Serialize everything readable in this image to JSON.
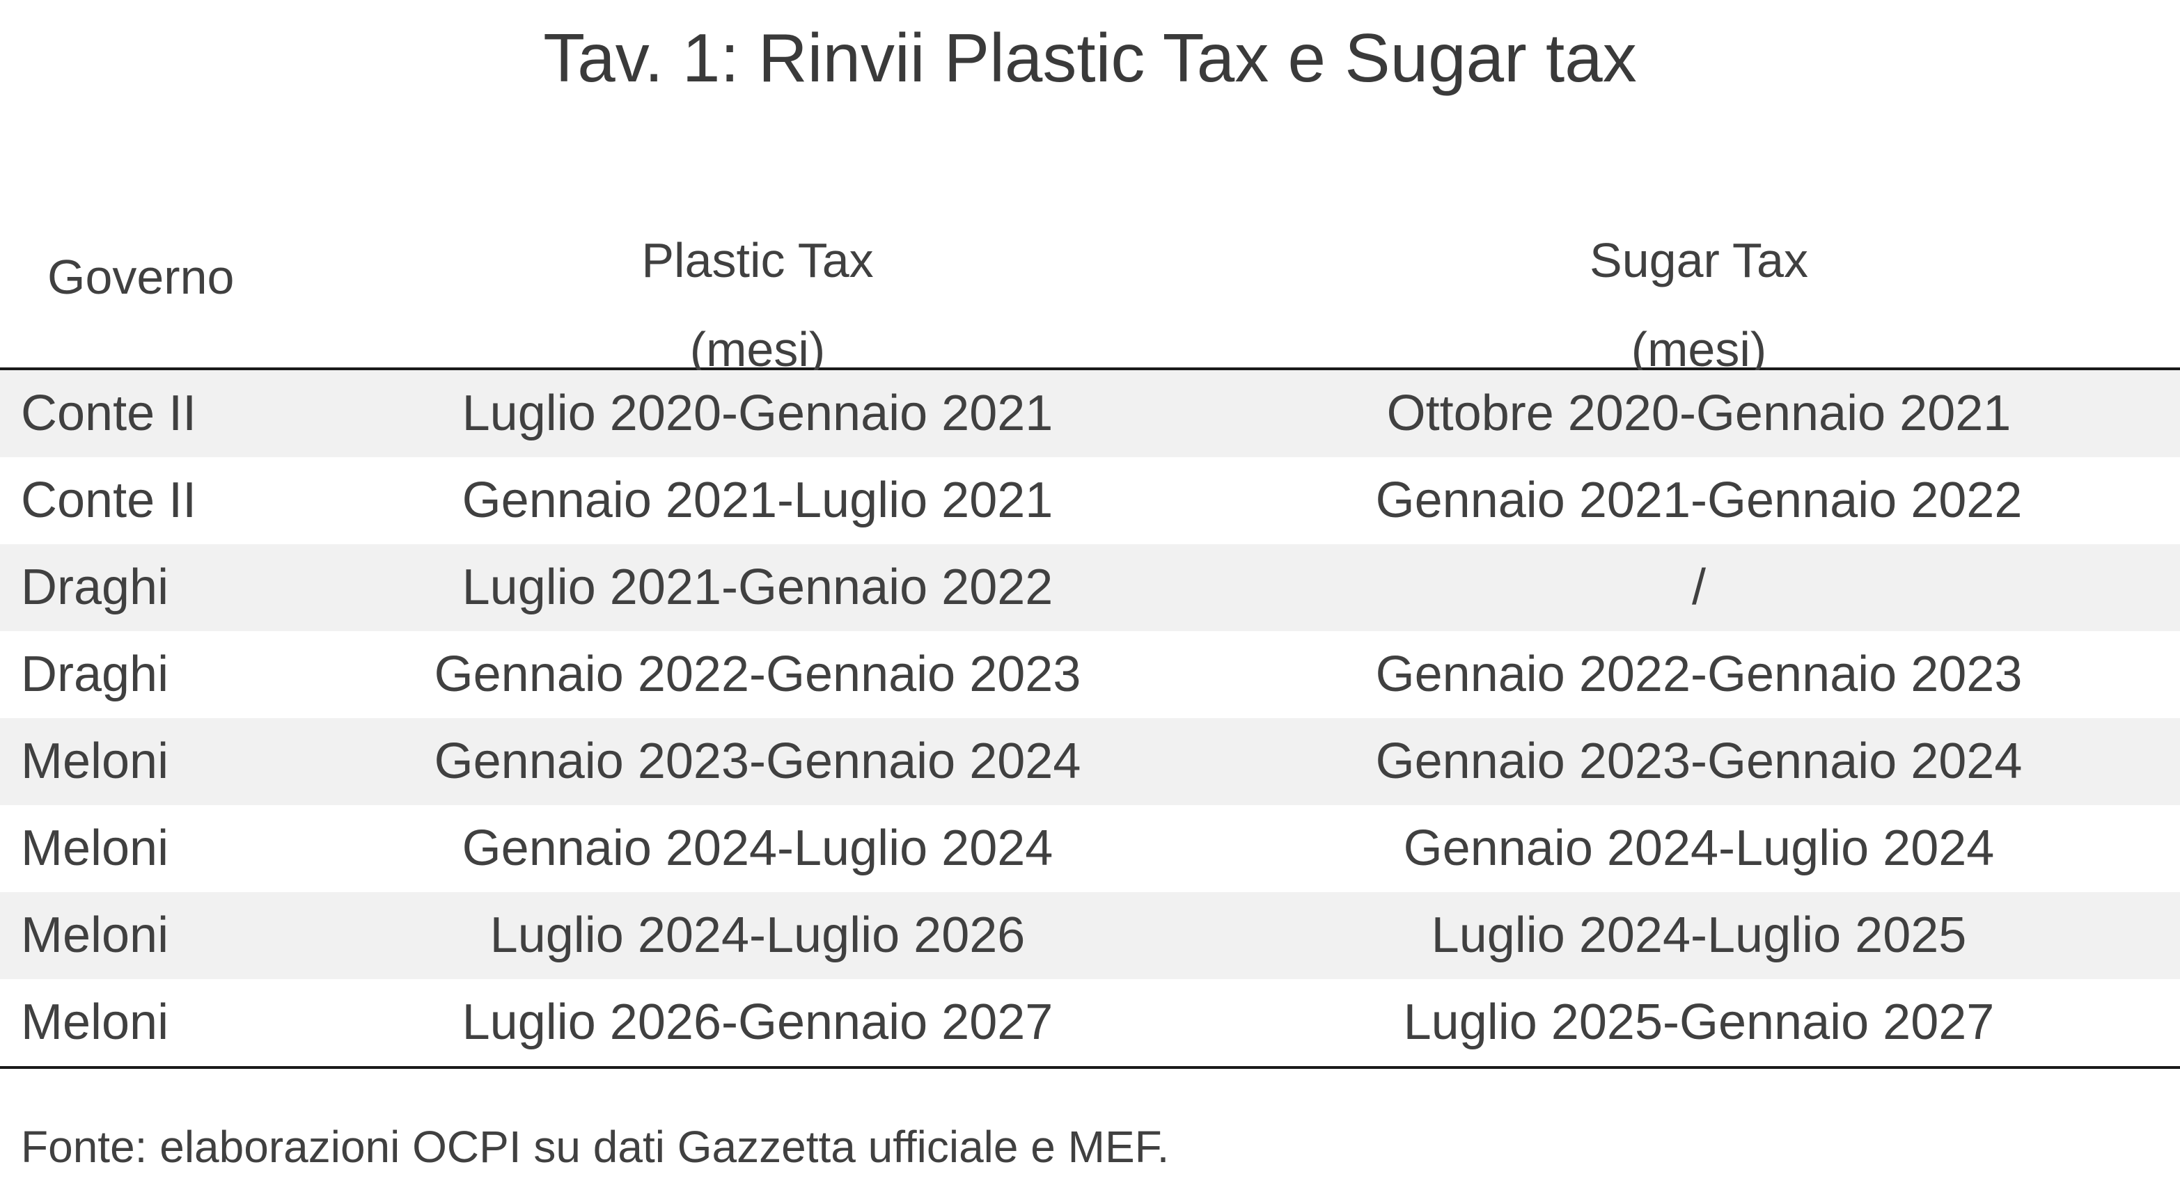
{
  "title": "Tav. 1: Rinvii Plastic Tax e Sugar tax",
  "table": {
    "headers": {
      "governo": "Governo",
      "plastic_tax": "Plastic Tax",
      "plastic_unit": "(mesi)",
      "sugar_tax": "Sugar Tax",
      "sugar_unit": "(mesi)"
    },
    "rows": [
      {
        "governo": "Conte II",
        "plastic": "Luglio 2020-Gennaio 2021",
        "sugar": "Ottobre 2020-Gennaio 2021"
      },
      {
        "governo": "Conte II",
        "plastic": "Gennaio 2021-Luglio 2021",
        "sugar": "Gennaio 2021-Gennaio 2022"
      },
      {
        "governo": "Draghi",
        "plastic": "Luglio 2021-Gennaio 2022",
        "sugar": "/"
      },
      {
        "governo": "Draghi",
        "plastic": "Gennaio 2022-Gennaio 2023",
        "sugar": "Gennaio 2022-Gennaio 2023"
      },
      {
        "governo": "Meloni",
        "plastic": "Gennaio 2023-Gennaio 2024",
        "sugar": "Gennaio 2023-Gennaio 2024"
      },
      {
        "governo": "Meloni",
        "plastic": "Gennaio 2024-Luglio 2024",
        "sugar": "Gennaio 2024-Luglio 2024"
      },
      {
        "governo": "Meloni",
        "plastic": "Luglio 2024-Luglio 2026",
        "sugar": "Luglio 2024-Luglio 2025"
      },
      {
        "governo": "Meloni",
        "plastic": "Luglio 2026-Gennaio 2027",
        "sugar": "Luglio 2025-Gennaio 2027"
      }
    ]
  },
  "source": "Fonte: elaborazioni OCPI su dati Gazzetta ufficiale e MEF.",
  "colors": {
    "text": "#404040",
    "row_shade": "#f1f1f1",
    "rule": "#1a1a1a"
  }
}
